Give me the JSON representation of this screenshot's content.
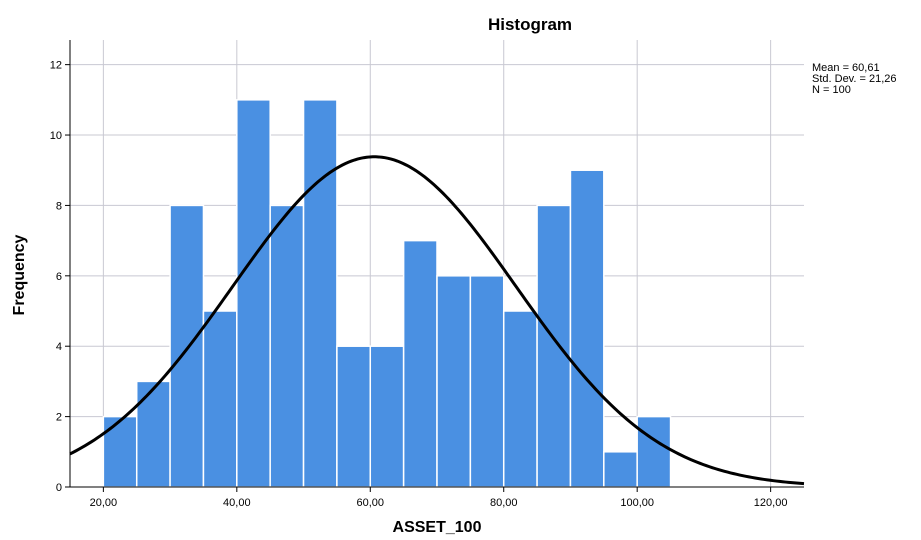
{
  "chart_data": {
    "type": "bar",
    "title": "Histogram",
    "xlabel": "ASSET_100",
    "ylabel": "Frequency",
    "xlim": [
      15,
      125
    ],
    "ylim": [
      0,
      12.7
    ],
    "x_ticks": [
      20,
      40,
      60,
      80,
      100,
      120
    ],
    "x_tick_labels": [
      "20,00",
      "40,00",
      "60,00",
      "80,00",
      "100,00",
      "120,00"
    ],
    "y_ticks": [
      0,
      2,
      4,
      6,
      8,
      10,
      12
    ],
    "y_tick_labels": [
      "0",
      "2",
      "4",
      "6",
      "8",
      "10",
      "12"
    ],
    "bin_width": 5,
    "bins": [
      {
        "start": 20,
        "end": 25,
        "count": 2
      },
      {
        "start": 25,
        "end": 30,
        "count": 3
      },
      {
        "start": 30,
        "end": 35,
        "count": 8
      },
      {
        "start": 35,
        "end": 40,
        "count": 5
      },
      {
        "start": 40,
        "end": 45,
        "count": 11
      },
      {
        "start": 45,
        "end": 50,
        "count": 8
      },
      {
        "start": 50,
        "end": 55,
        "count": 11
      },
      {
        "start": 55,
        "end": 60,
        "count": 4
      },
      {
        "start": 60,
        "end": 65,
        "count": 4
      },
      {
        "start": 65,
        "end": 70,
        "count": 7
      },
      {
        "start": 70,
        "end": 75,
        "count": 6
      },
      {
        "start": 75,
        "end": 80,
        "count": 6
      },
      {
        "start": 80,
        "end": 85,
        "count": 5
      },
      {
        "start": 85,
        "end": 90,
        "count": 8
      },
      {
        "start": 90,
        "end": 95,
        "count": 9
      },
      {
        "start": 95,
        "end": 100,
        "count": 1
      },
      {
        "start": 100,
        "end": 105,
        "count": 2
      }
    ],
    "normal_curve": {
      "mean": 60.61,
      "std": 21.26,
      "n": 100
    },
    "stats_lines": [
      "Mean = 60,61",
      "Std. Dev. = 21,26",
      "N = 100"
    ],
    "grid": true,
    "legend_position": "top-right",
    "colors": {
      "bar": "#4a90e2",
      "bar_edge": "#ffffff",
      "curve": "#000000",
      "grid": "#c8c8d2",
      "axis": "#000000"
    }
  }
}
